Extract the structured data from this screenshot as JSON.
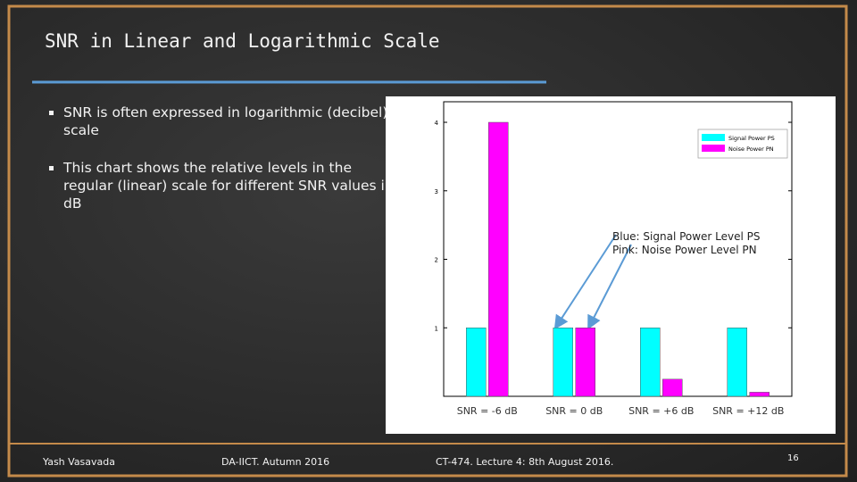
{
  "slide": {
    "title": "SNR in Linear and Logarithmic Scale",
    "bullets": [
      "SNR is often expressed in logarithmic (decibel) scale",
      "This chart shows the relative levels in the regular (linear) scale for different SNR values in dB"
    ],
    "footer": {
      "author": "Yash Vasavada",
      "institute": "DA-IICT. Autumn 2016",
      "lecture": "CT-474. Lecture 4: 8th August 2016.",
      "page": "16"
    }
  },
  "chart_data": {
    "type": "bar",
    "categories": [
      "SNR = -6 dB",
      "SNR = 0 dB",
      "SNR = +6 dB",
      "SNR = +12 dB"
    ],
    "series": [
      {
        "name": "Signal Power PS",
        "color": "#00ffff",
        "values": [
          1,
          1,
          1,
          1
        ]
      },
      {
        "name": "Noise Power PN",
        "color": "#ff00ff",
        "values": [
          4,
          1,
          0.25,
          0.06
        ]
      }
    ],
    "ylim": [
      0,
      4.3
    ],
    "yticks": [
      1,
      2,
      3,
      4
    ],
    "annotations": [
      "Blue: Signal Power Level PS",
      "Pink: Noise Power Level PN"
    ],
    "legend": "upper right"
  }
}
